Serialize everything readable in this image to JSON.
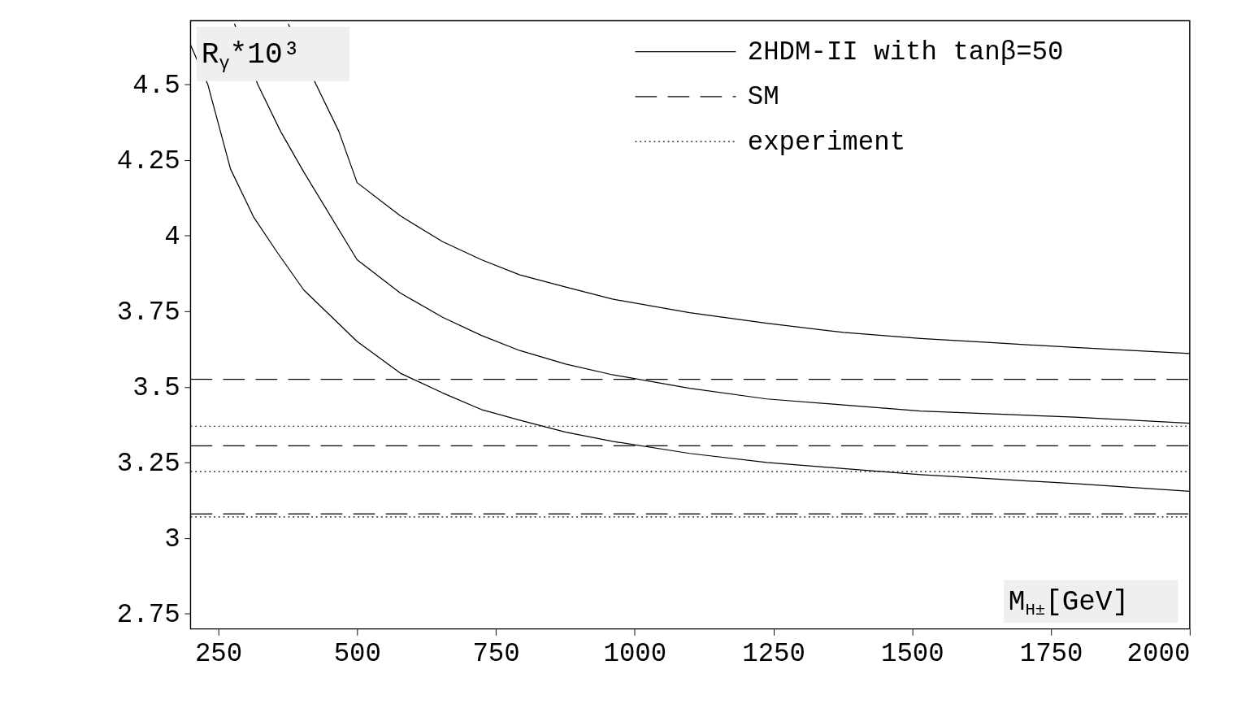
{
  "chart_data": {
    "type": "line",
    "xlabel": "M$_{H±}$[GeV]",
    "ylabel": "R$_{γ}$*10³",
    "xlim": [
      200,
      2000
    ],
    "ylim": [
      2.7,
      4.71
    ],
    "xticks": [
      250,
      500,
      750,
      1000,
      1250,
      1500,
      1750,
      2000
    ],
    "yticks": [
      2.75,
      3,
      3.25,
      3.5,
      3.75,
      4,
      4.25,
      4.5
    ],
    "grid": false,
    "legend": "top right",
    "marker": "none",
    "series": [
      {
        "name": "2HDM-II with tanβ=50",
        "color": "#000000",
        "line_style": "solid",
        "x": [
          376,
          426,
          467,
          500,
          578,
          654,
          724,
          793,
          876,
          960,
          1099,
          1238,
          1376,
          1515,
          1654,
          1793,
          2000
        ],
        "values": [
          4.7,
          4.5,
          4.345,
          4.175,
          4.065,
          3.98,
          3.92,
          3.87,
          3.83,
          3.79,
          3.745,
          3.71,
          3.68,
          3.66,
          3.645,
          3.63,
          3.61
        ]
      },
      {
        "color": "#000000",
        "line_style": "solid",
        "x": [
          279,
          321,
          362,
          404,
          500,
          578,
          654,
          724,
          793,
          876,
          960,
          1099,
          1238,
          1376,
          1515,
          1654,
          1793,
          2000
        ],
        "values": [
          4.7,
          4.5,
          4.345,
          4.21,
          3.92,
          3.81,
          3.73,
          3.67,
          3.62,
          3.575,
          3.54,
          3.495,
          3.46,
          3.44,
          3.42,
          3.41,
          3.4,
          3.38
        ]
      },
      {
        "color": "#000000",
        "line_style": "solid",
        "x": [
          200,
          231,
          272,
          314,
          356,
          404,
          500,
          578,
          654,
          724,
          793,
          876,
          960,
          1099,
          1238,
          1376,
          1515,
          1654,
          1793,
          2000
        ],
        "values": [
          4.63,
          4.5,
          4.22,
          4.06,
          3.945,
          3.82,
          3.65,
          3.545,
          3.48,
          3.425,
          3.39,
          3.35,
          3.32,
          3.28,
          3.25,
          3.23,
          3.21,
          3.195,
          3.18,
          3.155
        ]
      },
      {
        "name": "SM",
        "color": "#000000",
        "line_style": "dashed",
        "x": [
          200,
          2000
        ],
        "values": [
          3.525,
          3.525
        ]
      },
      {
        "color": "#000000",
        "line_style": "dashed",
        "x": [
          200,
          2000
        ],
        "values": [
          3.305,
          3.305
        ]
      },
      {
        "color": "#000000",
        "line_style": "dashed",
        "x": [
          200,
          2000
        ],
        "values": [
          3.08,
          3.08
        ]
      },
      {
        "name": "experiment",
        "color": "#000000",
        "line_style": "dotted",
        "x": [
          200,
          2000
        ],
        "values": [
          3.37,
          3.37
        ]
      },
      {
        "color": "#000000",
        "line_style": "dotted",
        "x": [
          200,
          2000
        ],
        "values": [
          3.22,
          3.22
        ]
      },
      {
        "color": "#000000",
        "line_style": "dotted",
        "x": [
          200,
          2000
        ],
        "values": [
          3.07,
          3.07
        ]
      }
    ]
  }
}
